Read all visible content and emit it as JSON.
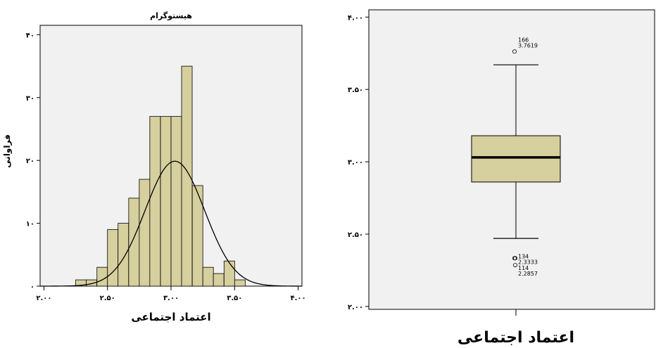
{
  "colors": {
    "bar_fill": "#d6cf9e",
    "box_fill": "#d6cf9e",
    "plot_bg": "#f1f1f1",
    "line": "#000000"
  },
  "chart_data": [
    {
      "type": "bar",
      "title": "هیستوگرام",
      "xlabel": "اعتماد اجتماعی",
      "ylabel": "فراوانی",
      "x_ticks": [
        2.0,
        2.5,
        3.0,
        3.5,
        4.0
      ],
      "x_tick_labels": [
        "۲.۰۰",
        "۲.۵۰",
        "۳.۰۰",
        "۳.۵۰",
        "۴.۰۰"
      ],
      "y_ticks": [
        0,
        10,
        20,
        30,
        40
      ],
      "y_tick_labels": [
        "۰",
        "۱۰",
        "۲۰",
        "۳۰",
        "۴۰"
      ],
      "xlim": [
        1.97,
        4.03
      ],
      "ylim": [
        0,
        41.5
      ],
      "bin_width": 0.0833,
      "bin_starts": [
        2.25,
        2.333,
        2.417,
        2.5,
        2.583,
        2.667,
        2.75,
        2.833,
        2.917,
        3.0,
        3.083,
        3.167,
        3.25,
        3.333,
        3.417,
        3.5,
        3.583,
        3.667
      ],
      "values": [
        1,
        1,
        3,
        9,
        10,
        14,
        17,
        27,
        27,
        27,
        35,
        16,
        3,
        2,
        4,
        1,
        0,
        0
      ],
      "normal_curve": {
        "mean": 3.03,
        "sd": 0.234,
        "n": 140
      },
      "grid": false
    },
    {
      "type": "box",
      "xlabel": "اعتماد اجتماعی",
      "y_ticks": [
        2.0,
        2.5,
        3.0,
        3.5,
        4.0
      ],
      "y_tick_labels": [
        "۲.۰۰",
        "۲.۵۰",
        "۳.۰۰",
        "۳.۵۰",
        "۴.۰۰"
      ],
      "ylim": [
        1.98,
        4.05
      ],
      "whisker_low": 2.47,
      "q1": 2.86,
      "median": 3.03,
      "q3": 3.18,
      "whisker_high": 3.67,
      "outliers": [
        {
          "value": 3.7619,
          "id": "166",
          "value_label": "3.7619"
        },
        {
          "value": 2.3333,
          "id": "134",
          "value_label": "2.3333"
        },
        {
          "value": 2.3333
        },
        {
          "value": 2.2857,
          "id": "114",
          "value_label": "2.2857"
        }
      ],
      "grid": false
    }
  ]
}
